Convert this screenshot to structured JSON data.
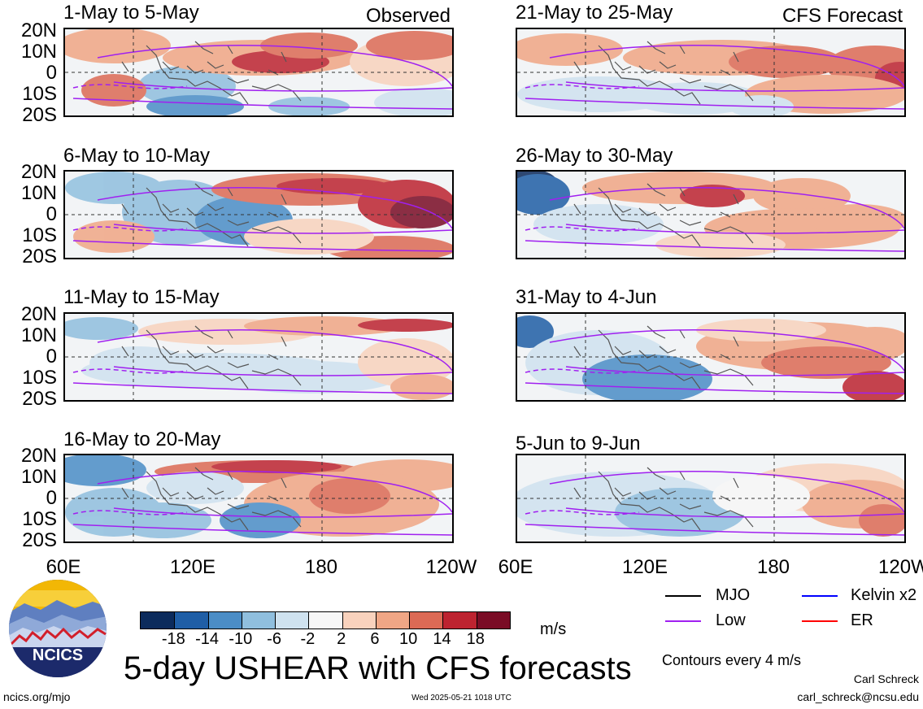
{
  "figure_title": "5-day USHEAR with CFS forecasts",
  "observed_label": "Observed",
  "forecast_label": "CFS Forecast",
  "lat_labels": [
    "20N",
    "10N",
    "0",
    "10S",
    "20S"
  ],
  "lon_labels": [
    "60E",
    "120E",
    "180",
    "120W"
  ],
  "lon_labels_right": [
    "60E",
    "120E",
    "180",
    "120W"
  ],
  "units": "m/s",
  "contour_note": "Contours every 4 m/s",
  "author": "Carl Schreck",
  "email": "carl_schreck@ncsu.edu",
  "website": "ncics.org/mjo",
  "timestamp": "Wed 2025-05-21 1018 UTC",
  "logo_text": "NCICS",
  "colorbar": {
    "colors": [
      "#0c2b5c",
      "#1f5ea6",
      "#4b8dc6",
      "#90bfde",
      "#cfe2ef",
      "#f7f7f7",
      "#f9d2bd",
      "#f0a685",
      "#dc6a55",
      "#bd2330",
      "#7a0c25"
    ],
    "labels": [
      "-18",
      "-14",
      "-10",
      "-6",
      "-2",
      "2",
      "6",
      "10",
      "14",
      "18"
    ]
  },
  "legend": [
    {
      "label": "MJO",
      "color": "#000000"
    },
    {
      "label": "Kelvin x2",
      "color": "#0000ff"
    },
    {
      "label": "Low",
      "color": "#a020f0"
    },
    {
      "label": "ER",
      "color": "#ff0000"
    }
  ],
  "panels_left": [
    {
      "title": "1-May to 5-May"
    },
    {
      "title": "6-May to 10-May"
    },
    {
      "title": "11-May to 15-May"
    },
    {
      "title": "16-May to 20-May"
    }
  ],
  "panels_right": [
    {
      "title": "21-May to 25-May"
    },
    {
      "title": "26-May to 30-May"
    },
    {
      "title": "31-May to 4-Jun"
    },
    {
      "title": "5-Jun to 9-Jun"
    }
  ],
  "chart_data": {
    "type": "heatmap",
    "title": "5-day USHEAR with CFS forecasts",
    "variable": "USHEAR",
    "units": "m/s",
    "x_range": [
      "60E",
      "120W"
    ],
    "y_range": [
      "20S",
      "20N"
    ],
    "contour_levels": [
      -18,
      -14,
      -10,
      -6,
      -2,
      2,
      6,
      10,
      14,
      18
    ],
    "panels": [
      {
        "title": "1-May to 5-May",
        "source": "Observed"
      },
      {
        "title": "6-May to 10-May",
        "source": "Observed"
      },
      {
        "title": "11-May to 15-May",
        "source": "Observed"
      },
      {
        "title": "16-May to 20-May",
        "source": "Observed"
      },
      {
        "title": "21-May to 25-May",
        "source": "CFS Forecast"
      },
      {
        "title": "26-May to 30-May",
        "source": "CFS Forecast"
      },
      {
        "title": "31-May to 4-Jun",
        "source": "CFS Forecast"
      },
      {
        "title": "5-Jun to 9-Jun",
        "source": "CFS Forecast"
      }
    ]
  }
}
